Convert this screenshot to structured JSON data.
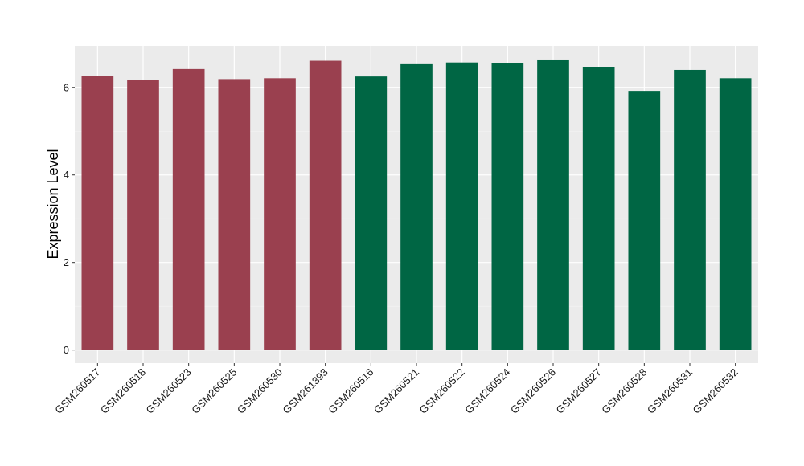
{
  "chart_data": {
    "type": "bar",
    "title": "",
    "xlabel": "",
    "ylabel": "Expression Level",
    "ylim": [
      -0.3,
      6.95
    ],
    "yticks": [
      0,
      2,
      4,
      6
    ],
    "grid": true,
    "legend": "none",
    "background": "#ebebeb",
    "categories": [
      "GSM260517",
      "GSM260518",
      "GSM260523",
      "GSM260525",
      "GSM260530",
      "GSM261393",
      "GSM260516",
      "GSM260521",
      "GSM260522",
      "GSM260524",
      "GSM260526",
      "GSM260527",
      "GSM260528",
      "GSM260531",
      "GSM260532"
    ],
    "values": [
      6.27,
      6.17,
      6.42,
      6.19,
      6.21,
      6.61,
      6.25,
      6.53,
      6.57,
      6.55,
      6.62,
      6.47,
      5.92,
      6.4,
      6.21
    ],
    "groups": [
      0,
      0,
      0,
      0,
      0,
      0,
      1,
      1,
      1,
      1,
      1,
      1,
      1,
      1,
      1
    ],
    "colors": [
      "#9a404f",
      "#006644"
    ]
  }
}
